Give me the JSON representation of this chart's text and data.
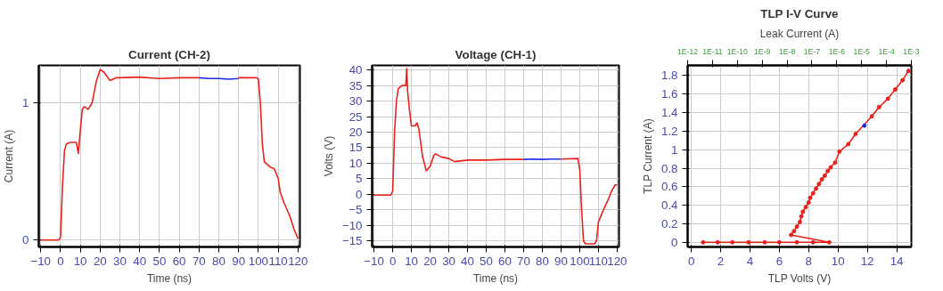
{
  "chart_data": [
    {
      "type": "line",
      "title": "Current (CH-2)",
      "xlabel": "Time (ns)",
      "ylabel": "Current (A)",
      "xlim": [
        -11,
        121
      ],
      "ylim": [
        -0.05,
        1.27
      ],
      "xticks": [
        -10,
        0,
        10,
        20,
        30,
        40,
        50,
        60,
        70,
        80,
        90,
        100,
        110,
        120
      ],
      "yticks": [
        0,
        1
      ],
      "grid": true,
      "series": [
        {
          "color": "#e8231e",
          "x": [
            -11,
            -5,
            -1,
            0,
            1,
            2,
            3,
            5,
            8,
            9,
            10,
            11,
            12,
            14,
            16,
            18,
            20,
            22,
            25,
            28,
            30,
            40,
            50,
            60,
            70,
            80,
            90,
            99,
            100,
            101,
            102,
            103,
            106,
            108,
            110,
            111,
            113,
            116,
            118,
            120
          ],
          "values": [
            0,
            0,
            0,
            0.02,
            0.4,
            0.65,
            0.7,
            0.71,
            0.71,
            0.63,
            0.8,
            0.95,
            0.97,
            0.95,
            1.0,
            1.15,
            1.24,
            1.22,
            1.16,
            1.18,
            1.18,
            1.185,
            1.175,
            1.18,
            1.18,
            null,
            1.18,
            1.18,
            1.17,
            1.0,
            0.7,
            0.57,
            0.53,
            0.52,
            0.45,
            0.35,
            0.27,
            0.17,
            0.08,
            0.01
          ]
        },
        {
          "color": "#1f2ee0",
          "x": [
            70,
            75,
            80,
            85,
            90
          ],
          "values": [
            1.18,
            1.175,
            1.175,
            1.17,
            1.175
          ]
        }
      ]
    },
    {
      "type": "line",
      "title": "Voltage (CH-1)",
      "xlabel": "Time (ns)",
      "ylabel": "Volts (V)",
      "xlim": [
        -11,
        121
      ],
      "ylim": [
        -17,
        41.5
      ],
      "xticks": [
        -10,
        0,
        10,
        20,
        30,
        40,
        50,
        60,
        70,
        80,
        90,
        100,
        110,
        120
      ],
      "yticks": [
        -15,
        -10,
        -5,
        0,
        5,
        10,
        15,
        20,
        25,
        30,
        35,
        40
      ],
      "grid": true,
      "series": [
        {
          "color": "#e8231e",
          "x": [
            -11,
            -1,
            0,
            1,
            2,
            3,
            5,
            7,
            7.5,
            8,
            9,
            10,
            12,
            13,
            14,
            16,
            18,
            20,
            22,
            23,
            26,
            30,
            33,
            40,
            50,
            60,
            70,
            80,
            90,
            99,
            100,
            101,
            102,
            103,
            108,
            109,
            110,
            112,
            115,
            117,
            119,
            120
          ],
          "values": [
            -0.3,
            -0.3,
            1,
            20,
            30,
            34,
            35,
            35,
            40.5,
            33,
            27,
            22,
            22,
            23,
            21,
            12,
            7.5,
            9,
            12.5,
            13,
            12,
            11.5,
            10.5,
            11,
            11,
            11.2,
            11.2,
            null,
            11.3,
            11.5,
            8,
            -5,
            -15,
            -16,
            -16,
            -15,
            -9,
            -6,
            -2,
            1,
            3,
            3
          ]
        },
        {
          "color": "#1f2ee0",
          "x": [
            70,
            75,
            80,
            85,
            90
          ],
          "values": [
            11.2,
            11.3,
            11.2,
            11.3,
            11.3
          ]
        }
      ]
    },
    {
      "type": "line",
      "title": "TLP I-V Curve",
      "xlabel": "TLP Volts (V)",
      "ylabel": "TLP Current (A)",
      "x2label": "Leak Current (A)",
      "xlim": [
        -0.25,
        15
      ],
      "ylim": [
        -0.05,
        1.91
      ],
      "xticks": [
        0,
        2,
        4,
        6,
        8,
        10,
        12,
        14
      ],
      "yticks": [
        0,
        0.2,
        0.4,
        0.6,
        0.8,
        1,
        1.2,
        1.4,
        1.6,
        1.8
      ],
      "x2lim": [
        1e-12,
        0.001
      ],
      "log": "x2",
      "x2ticks": [
        {
          "value": 1e-12,
          "label": "1E-12"
        },
        {
          "value": 1e-11,
          "label": "1E-11"
        },
        {
          "value": 1e-10,
          "label": "1E-10"
        },
        {
          "value": 1e-09,
          "label": "1E-9"
        },
        {
          "value": 1e-08,
          "label": "1E-8"
        },
        {
          "value": 1e-07,
          "label": "1E-7"
        },
        {
          "value": 1e-06,
          "label": "1E-6"
        },
        {
          "value": 1e-05,
          "label": "1E-5"
        },
        {
          "value": 0.0001,
          "label": "1E-4"
        },
        {
          "value": 0.001,
          "label": "1E-3"
        }
      ],
      "grid": true,
      "marker": "circle",
      "series": [
        {
          "color": "#e8231e",
          "x": [
            0.8,
            1.8,
            2.8,
            3.9,
            5,
            6,
            7.2,
            8.3,
            9.4,
            6.8,
            7,
            7.2,
            7.4,
            7.5,
            7.6,
            7.8,
            8,
            8.1,
            8.3,
            8.5,
            8.7,
            8.9,
            9.1,
            9.3,
            9.5,
            9.8,
            10.1,
            10.7,
            11.2,
            12.3,
            12.8,
            13.4,
            13.9,
            14.4,
            14.8
          ],
          "values": [
            0,
            0,
            0,
            0,
            0,
            0,
            0,
            0,
            0,
            0.08,
            0.12,
            0.17,
            0.22,
            0.28,
            0.33,
            0.38,
            0.43,
            0.48,
            0.53,
            0.58,
            0.63,
            0.68,
            0.72,
            0.77,
            0.81,
            0.86,
            0.98,
            1.06,
            1.17,
            1.36,
            1.46,
            1.55,
            1.65,
            1.75,
            1.85
          ]
        },
        {
          "type": "scatter",
          "color": "#1f2ee0",
          "x": [
            11.8
          ],
          "values": [
            1.26
          ]
        }
      ]
    }
  ]
}
